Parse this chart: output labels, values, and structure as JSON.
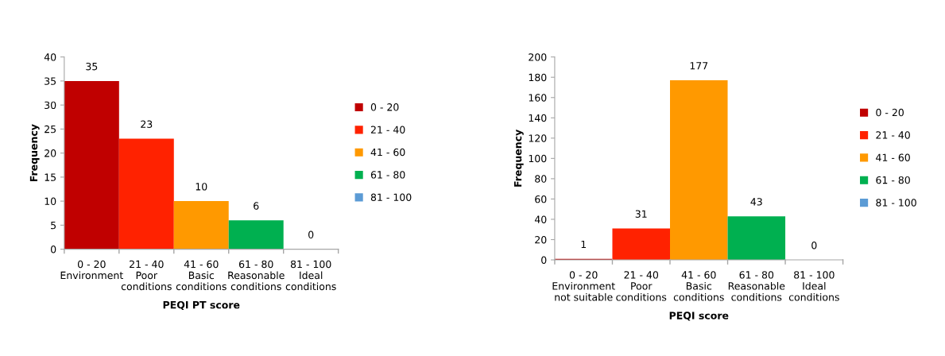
{
  "chart_data": [
    {
      "type": "bar",
      "xlabel": "PEQI PT score",
      "ylabel": "Frequency",
      "categories": [
        "0 - 20\nEnvironment",
        "21 - 40\nPoor\nconditions",
        "41 - 60\nBasic\nconditions",
        "61 - 80\nReasonable\nconditions",
        "81 - 100\nIdeal\nconditions"
      ],
      "series": [
        {
          "name": "0 - 20",
          "color": "#c00000",
          "values": [
            35,
            null,
            null,
            null,
            null
          ]
        },
        {
          "name": "21 - 40",
          "color": "#ff2200",
          "values": [
            null,
            23,
            null,
            null,
            null
          ]
        },
        {
          "name": "41 - 60",
          "color": "#ff9900",
          "values": [
            null,
            null,
            10,
            null,
            null
          ]
        },
        {
          "name": "61 - 80",
          "color": "#00b050",
          "values": [
            null,
            null,
            null,
            6,
            null
          ]
        },
        {
          "name": "81 - 100",
          "color": "#5b9bd5",
          "values": [
            null,
            null,
            null,
            null,
            0
          ]
        }
      ],
      "ylim": [
        0,
        40
      ],
      "yticks": [
        0,
        5,
        10,
        15,
        20,
        25,
        30,
        35,
        40
      ],
      "data_labels": true,
      "grid": false,
      "legend": "right"
    },
    {
      "type": "bar",
      "xlabel": "PEQI score",
      "ylabel": "Frequency",
      "categories": [
        "0 - 20\nEnvironment\nnot suitable",
        "21 - 40\nPoor\nconditions",
        "41 - 60\nBasic\nconditions",
        "61 - 80\nReasonable\nconditions",
        "81 - 100\nIdeal\nconditions"
      ],
      "series": [
        {
          "name": "0 - 20",
          "color": "#c00000",
          "values": [
            1,
            null,
            null,
            null,
            null
          ]
        },
        {
          "name": "21 - 40",
          "color": "#ff2200",
          "values": [
            null,
            31,
            null,
            null,
            null
          ]
        },
        {
          "name": "41 - 60",
          "color": "#ff9900",
          "values": [
            null,
            null,
            177,
            null,
            null
          ]
        },
        {
          "name": "61 - 80",
          "color": "#00b050",
          "values": [
            null,
            null,
            null,
            43,
            null
          ]
        },
        {
          "name": "81 - 100",
          "color": "#5b9bd5",
          "values": [
            null,
            null,
            null,
            null,
            0
          ]
        }
      ],
      "ylim": [
        0,
        200
      ],
      "yticks": [
        0,
        20,
        40,
        60,
        80,
        100,
        120,
        140,
        160,
        180,
        200
      ],
      "data_labels": true,
      "grid": false,
      "legend": "right"
    }
  ]
}
